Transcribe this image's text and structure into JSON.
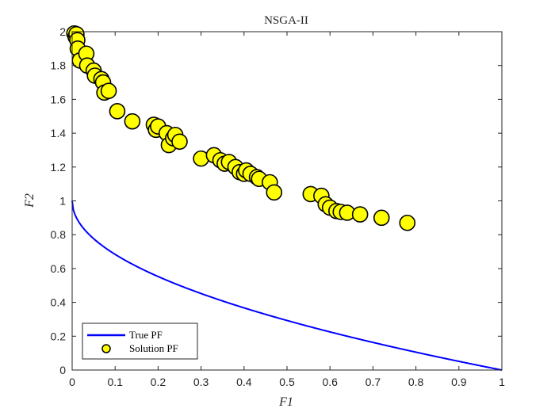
{
  "chart_data": {
    "type": "scatter",
    "title": "NSGA-II",
    "xlabel": "F1",
    "ylabel": "F2",
    "xlim": [
      0,
      1
    ],
    "ylim": [
      0,
      2
    ],
    "xticks": [
      "0",
      "0.1",
      "0.2",
      "0.3",
      "0.4",
      "0.5",
      "0.6",
      "0.7",
      "0.8",
      "0.9",
      "1"
    ],
    "yticks": [
      "0",
      "0.2",
      "0.4",
      "0.6",
      "0.8",
      "1",
      "1.2",
      "1.4",
      "1.6",
      "1.8",
      "2"
    ],
    "grid": false,
    "legend_position": "bottom-left",
    "series": [
      {
        "name": "True PF",
        "kind": "line",
        "color": "#0000ff",
        "formula": "y = 1 - sqrt(x)"
      },
      {
        "name": "Solution PF",
        "kind": "scatter",
        "color": "#ffff00",
        "edgecolor": "#000000",
        "points": [
          [
            0.005,
            1.99
          ],
          [
            0.008,
            1.97
          ],
          [
            0.01,
            1.985
          ],
          [
            0.012,
            1.95
          ],
          [
            0.013,
            1.9
          ],
          [
            0.018,
            1.83
          ],
          [
            0.033,
            1.87
          ],
          [
            0.035,
            1.8
          ],
          [
            0.05,
            1.77
          ],
          [
            0.053,
            1.74
          ],
          [
            0.068,
            1.72
          ],
          [
            0.072,
            1.7
          ],
          [
            0.075,
            1.64
          ],
          [
            0.085,
            1.65
          ],
          [
            0.105,
            1.53
          ],
          [
            0.14,
            1.47
          ],
          [
            0.19,
            1.45
          ],
          [
            0.195,
            1.42
          ],
          [
            0.2,
            1.44
          ],
          [
            0.22,
            1.4
          ],
          [
            0.225,
            1.33
          ],
          [
            0.235,
            1.37
          ],
          [
            0.24,
            1.39
          ],
          [
            0.25,
            1.35
          ],
          [
            0.3,
            1.25
          ],
          [
            0.33,
            1.27
          ],
          [
            0.345,
            1.24
          ],
          [
            0.355,
            1.22
          ],
          [
            0.365,
            1.23
          ],
          [
            0.38,
            1.2
          ],
          [
            0.39,
            1.17
          ],
          [
            0.4,
            1.16
          ],
          [
            0.405,
            1.18
          ],
          [
            0.415,
            1.16
          ],
          [
            0.43,
            1.14
          ],
          [
            0.435,
            1.13
          ],
          [
            0.46,
            1.11
          ],
          [
            0.47,
            1.05
          ],
          [
            0.555,
            1.04
          ],
          [
            0.58,
            1.03
          ],
          [
            0.59,
            0.98
          ],
          [
            0.6,
            0.96
          ],
          [
            0.615,
            0.94
          ],
          [
            0.625,
            0.935
          ],
          [
            0.64,
            0.93
          ],
          [
            0.67,
            0.92
          ],
          [
            0.72,
            0.9
          ],
          [
            0.78,
            0.87
          ]
        ]
      }
    ]
  }
}
